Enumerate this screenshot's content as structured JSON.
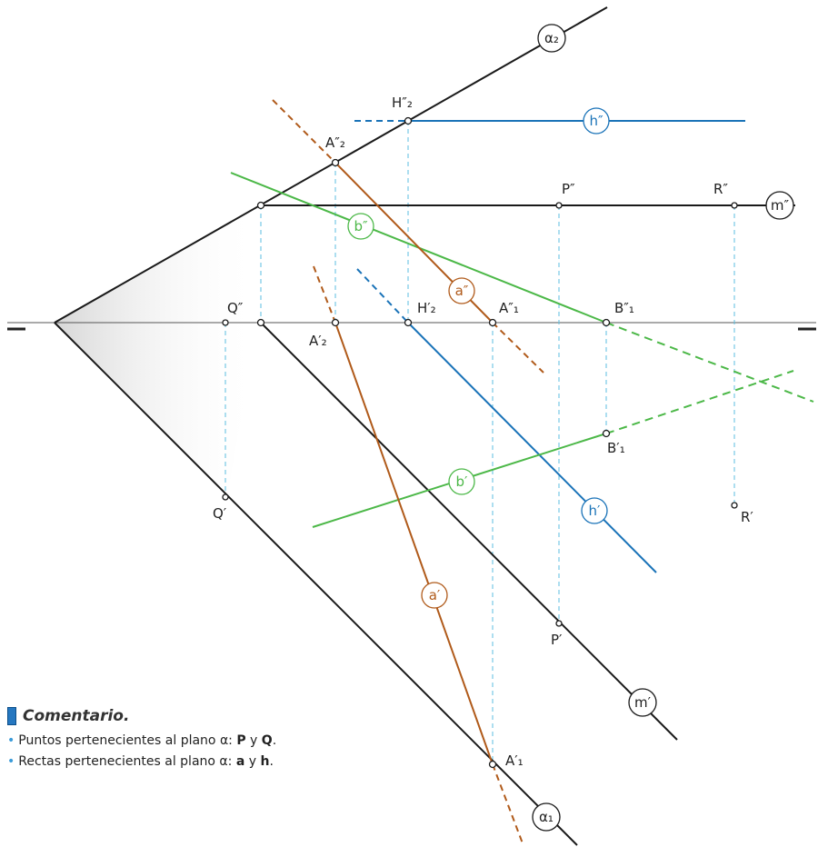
{
  "labels": {
    "alpha2": "α₂",
    "alpha1": "α₁",
    "H2pp": "H″₂",
    "hpp": "h″",
    "A2pp": "A″₂",
    "Ppp": "P″",
    "Rpp": "R″",
    "mpp": "m″",
    "bpp": "b″",
    "app": "a″",
    "Qpp": "Q″",
    "H2p": "H′₂",
    "A1pp": "A″₁",
    "B1pp": "B″₁",
    "A2p": "A′₂",
    "B1p": "B′₁",
    "bp": "b′",
    "hp": "h′",
    "Rp": "R′",
    "Qp": "Q′",
    "ap": "a′",
    "Pp": "P′",
    "mp": "m′",
    "A1p": "A′₁"
  },
  "colors": {
    "black": "#1a1a1a",
    "blue": "#1a73b8",
    "green": "#4cb848",
    "brown": "#b05a1a",
    "dashed_cyan": "#5bbde0",
    "bullet": "#3a9bd9"
  },
  "comment": {
    "title": "Comentario.",
    "line1_prefix": "Puntos pertenecientes al plano ",
    "line1_alpha": "α",
    "line1_mid": ": ",
    "line1_p": "P",
    "line1_y": " y ",
    "line1_q": "Q",
    "line1_end": ".",
    "line2_prefix": "Rectas pertenecientes al plano ",
    "line2_alpha": "α",
    "line2_mid": ": ",
    "line2_a": "a",
    "line2_y": " y ",
    "line2_h": "h",
    "line2_end": "."
  }
}
